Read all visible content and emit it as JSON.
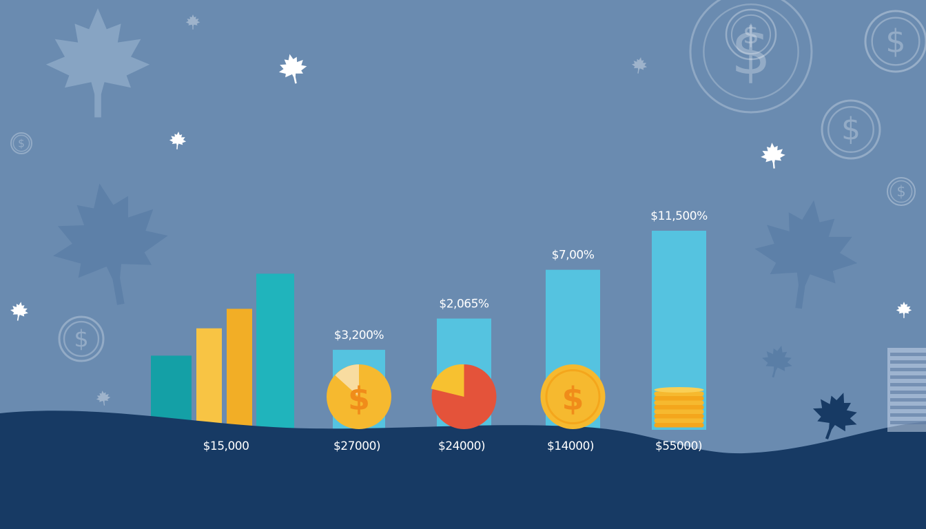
{
  "colors": {
    "background": "#6a8bb0",
    "ground": "#173a64",
    "teal": "#14a0a6",
    "teal_light": "#20b4bc",
    "gold": "#f8c444",
    "gold_dark": "#f2ae26",
    "sky_bar": "#55c3e0",
    "coin": "#f6b92f",
    "coin_edge": "#f4a61c",
    "pie_red": "#e4533a",
    "pie_gold": "#f7c130"
  },
  "icons": [
    "maple-leaf-icon",
    "dollar-coin-icon",
    "dollar-sign-icon",
    "coin-stack-icon"
  ],
  "chart_data": {
    "type": "bar",
    "title": "",
    "xlabel": "",
    "ylabel": "",
    "groups": [
      {
        "name": "group-1",
        "bottom_label": "$15,000",
        "top_label": "",
        "bars": [
          3.8,
          5.2,
          6.2,
          8.0
        ],
        "bar_colors": [
          "#14a0a6",
          "#f8c444",
          "#f2ae26",
          "#20b4bc"
        ],
        "marker": "none"
      },
      {
        "name": "group-2",
        "bottom_label": "$27000)",
        "top_label": "$3,200%",
        "bars": [
          4.1
        ],
        "bar_colors": [
          "#55c3e0"
        ],
        "marker": "coin-pie",
        "pie_fraction": 0.08
      },
      {
        "name": "group-3",
        "bottom_label": "$24000)",
        "top_label": "$2,065̄%",
        "bars": [
          5.7
        ],
        "bar_colors": [
          "#55c3e0"
        ],
        "marker": "pie",
        "pie_fraction": 0.15
      },
      {
        "name": "group-4",
        "bottom_label": "$14000)",
        "top_label": "$7,00%",
        "bars": [
          8.2
        ],
        "bar_colors": [
          "#55c3e0"
        ],
        "marker": "coin"
      },
      {
        "name": "group-5",
        "bottom_label": "$55000)",
        "top_label": "$11,500%",
        "bars": [
          10.2
        ],
        "bar_colors": [
          "#55c3e0"
        ],
        "marker": "coin-stack"
      }
    ],
    "ylim": [
      0,
      12
    ],
    "grid": false,
    "legend": "none"
  }
}
